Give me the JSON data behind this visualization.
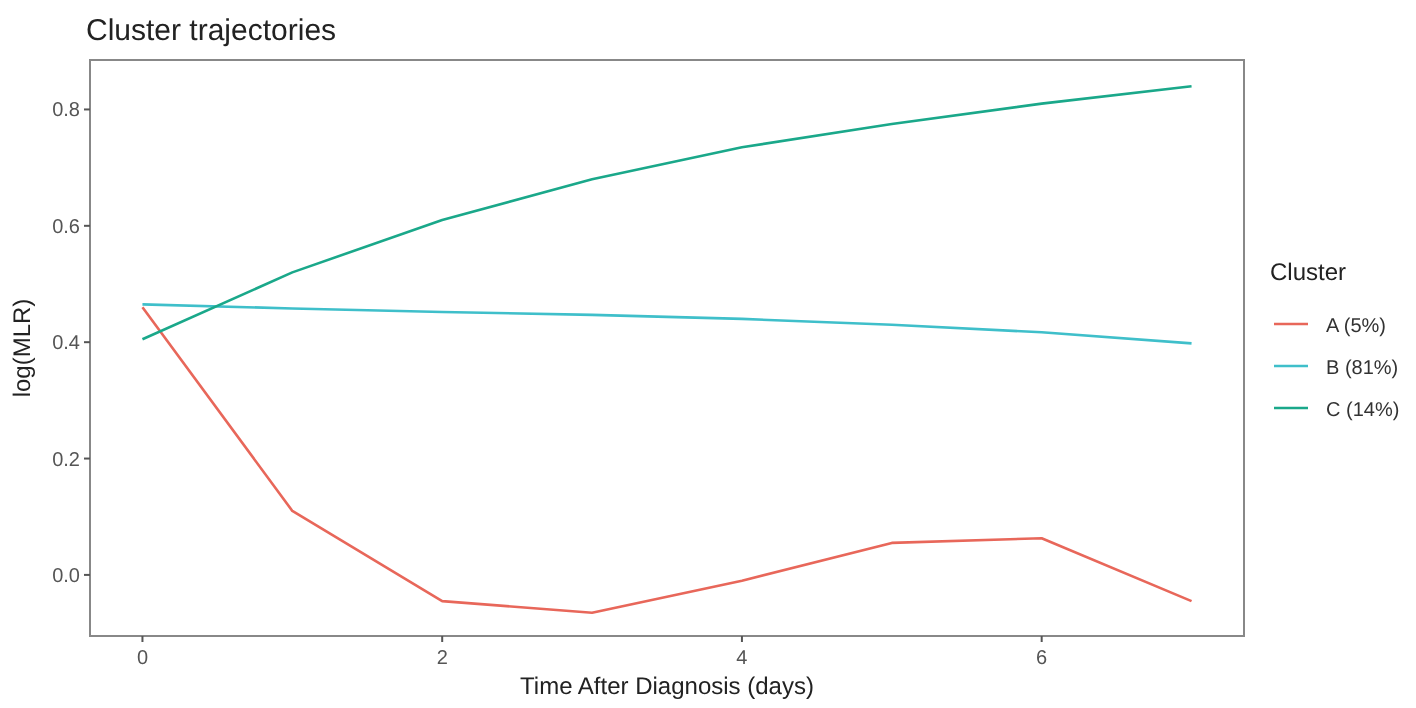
{
  "chart_data": {
    "type": "line",
    "title": "Cluster trajectories",
    "xlabel": "Time After Diagnosis (days)",
    "ylabel": "log(MLR)",
    "legend_title": "Cluster",
    "x": [
      0,
      1,
      2,
      3,
      4,
      5,
      6,
      7
    ],
    "series": [
      {
        "name": "A (5%)",
        "color": "#e8675a",
        "values": [
          0.46,
          0.11,
          -0.045,
          -0.065,
          -0.01,
          0.055,
          0.063,
          -0.045
        ]
      },
      {
        "name": "B (81%)",
        "color": "#3fbfca",
        "values": [
          0.465,
          0.458,
          0.452,
          0.447,
          0.44,
          0.43,
          0.417,
          0.398
        ]
      },
      {
        "name": "C (14%)",
        "color": "#1aa88a",
        "values": [
          0.405,
          0.52,
          0.61,
          0.68,
          0.735,
          0.775,
          0.81,
          0.84
        ]
      }
    ],
    "xlim": [
      -0.35,
      7.35
    ],
    "ylim": [
      -0.105,
      0.885
    ],
    "xticks": [
      0,
      2,
      4,
      6
    ],
    "yticks": [
      {
        "value": 0,
        "label": "0.0"
      },
      {
        "value": 0.2,
        "label": "0.2"
      },
      {
        "value": 0.4,
        "label": "0.4"
      },
      {
        "value": 0.6,
        "label": "0.6"
      },
      {
        "value": 0.8,
        "label": "0.8"
      }
    ],
    "grid": false,
    "legend": "right",
    "line_style": "solid",
    "marker": "none"
  }
}
